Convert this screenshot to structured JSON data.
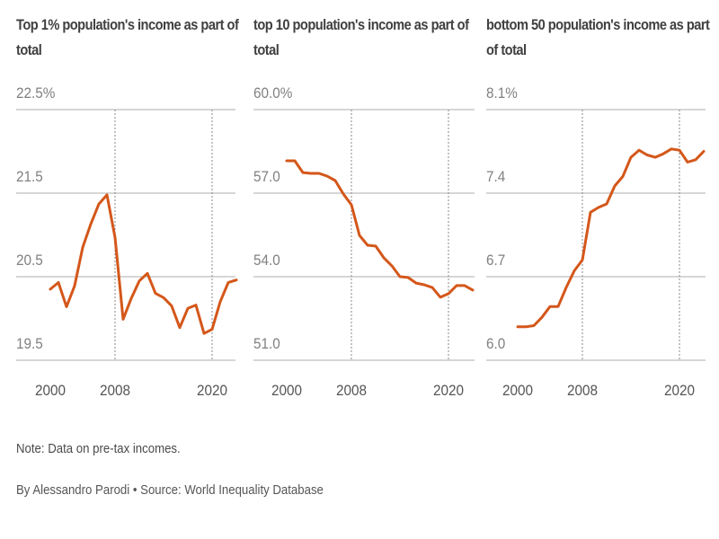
{
  "chart_data": [
    {
      "type": "line",
      "title": "Top 1% population's income as part of total",
      "xlabel": "",
      "ylabel": "",
      "y_tick_labels": [
        "22.5%",
        "21.5",
        "20.5",
        "19.5"
      ],
      "y_ticks": [
        22.5,
        21.5,
        20.5,
        19.5
      ],
      "ylim": [
        19.5,
        22.5
      ],
      "x_tick_labels": [
        "2000",
        "2008",
        "2020"
      ],
      "x_ticks": [
        2000,
        2008,
        2020
      ],
      "xlim": [
        2000,
        2023
      ],
      "reference_lines_x": [
        2008,
        2020
      ],
      "grid": true,
      "series": [
        {
          "name": "Top 1%",
          "color": "#d4571a",
          "x": [
            2000,
            2001,
            2002,
            2003,
            2004,
            2005,
            2006,
            2007,
            2008,
            2009,
            2010,
            2011,
            2012,
            2013,
            2014,
            2015,
            2016,
            2017,
            2018,
            2019,
            2020,
            2021,
            2022,
            2023
          ],
          "values": [
            20.35,
            20.43,
            20.14,
            20.39,
            20.85,
            21.13,
            21.37,
            21.48,
            20.97,
            19.99,
            20.24,
            20.45,
            20.54,
            20.3,
            20.25,
            20.15,
            19.89,
            20.12,
            20.16,
            19.82,
            19.87,
            20.2,
            20.43,
            20.46
          ]
        }
      ]
    },
    {
      "type": "line",
      "title": "top 10 population's income as part of total",
      "xlabel": "",
      "ylabel": "",
      "y_tick_labels": [
        "60.0%",
        "57.0",
        "54.0",
        "51.0"
      ],
      "y_ticks": [
        60.0,
        57.0,
        54.0,
        51.0
      ],
      "ylim": [
        51.0,
        60.0
      ],
      "x_tick_labels": [
        "2000",
        "2008",
        "2020"
      ],
      "x_ticks": [
        2000,
        2008,
        2020
      ],
      "xlim": [
        2000,
        2023
      ],
      "reference_lines_x": [
        2008,
        2020
      ],
      "grid": true,
      "series": [
        {
          "name": "Top 10%",
          "color": "#d4571a",
          "x": [
            2000,
            2001,
            2002,
            2003,
            2004,
            2005,
            2006,
            2007,
            2008,
            2009,
            2010,
            2011,
            2012,
            2013,
            2014,
            2015,
            2016,
            2017,
            2018,
            2019,
            2020,
            2021,
            2022,
            2023
          ],
          "values": [
            58.16,
            58.16,
            57.74,
            57.71,
            57.71,
            57.61,
            57.45,
            56.97,
            56.58,
            55.48,
            55.13,
            55.1,
            54.68,
            54.39,
            54.0,
            53.97,
            53.77,
            53.71,
            53.61,
            53.26,
            53.39,
            53.68,
            53.68,
            53.52
          ]
        }
      ]
    },
    {
      "type": "line",
      "title": "bottom 50 population's income as part of total",
      "xlabel": "",
      "ylabel": "",
      "y_tick_labels": [
        "8.1%",
        "7.4",
        "6.7",
        "6.0"
      ],
      "y_ticks": [
        8.1,
        7.4,
        6.7,
        6.0
      ],
      "ylim": [
        6.0,
        8.1
      ],
      "x_tick_labels": [
        "2000",
        "2008",
        "2020"
      ],
      "x_ticks": [
        2000,
        2008,
        2020
      ],
      "xlim": [
        2000,
        2023
      ],
      "reference_lines_x": [
        2008,
        2020
      ],
      "grid": true,
      "series": [
        {
          "name": "Bottom 50%",
          "color": "#d4571a",
          "x": [
            2000,
            2001,
            2002,
            2003,
            2004,
            2005,
            2006,
            2007,
            2008,
            2009,
            2010,
            2011,
            2012,
            2013,
            2014,
            2015,
            2016,
            2017,
            2018,
            2019,
            2020,
            2021,
            2022,
            2023
          ],
          "values": [
            6.28,
            6.28,
            6.29,
            6.36,
            6.45,
            6.45,
            6.61,
            6.75,
            6.84,
            7.24,
            7.28,
            7.31,
            7.46,
            7.54,
            7.7,
            7.76,
            7.72,
            7.7,
            7.73,
            7.77,
            7.76,
            7.66,
            7.68,
            7.75
          ]
        }
      ]
    }
  ],
  "titles": [
    "Top 1% population's income as part of total",
    "top 10 population's income as part of total",
    "bottom 50 population's income as part of total"
  ],
  "footer": {
    "note": "Note: Data on pre-tax incomes.",
    "credit": "By Alessandro Parodi • Source: World Inequality Database"
  },
  "colors": {
    "line": "#d4571a",
    "grid": "#c8c8c8",
    "reference": "#8a8a8a",
    "title_text": "#404040",
    "tick_text": "#808080"
  }
}
